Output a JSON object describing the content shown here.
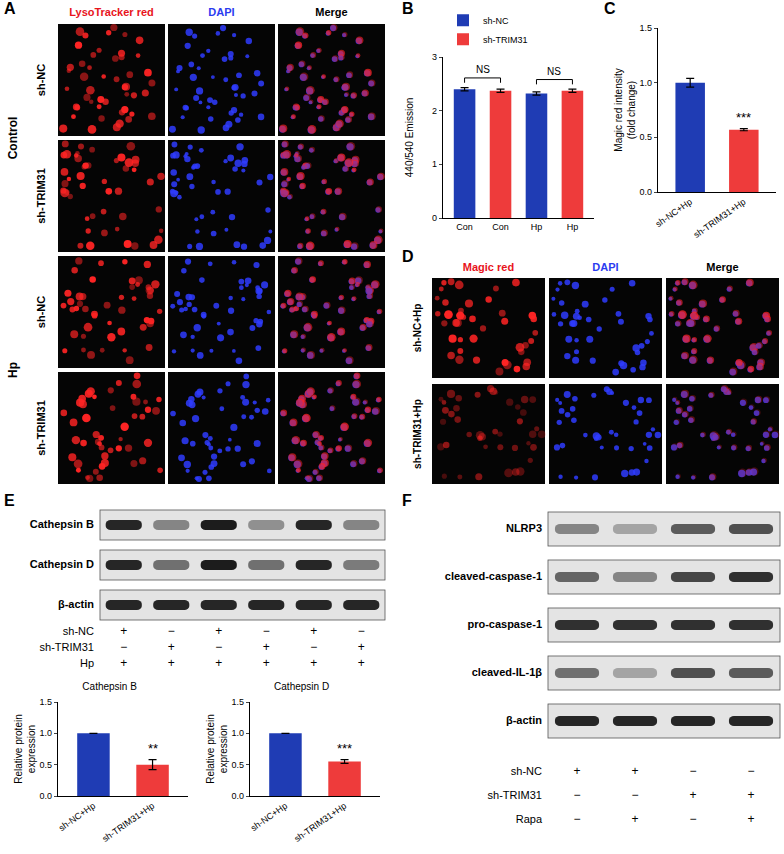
{
  "figure": {
    "panels": {
      "A": {
        "label": "A",
        "columns": [
          {
            "text": "LysoTracker red",
            "color": "#e8141c"
          },
          {
            "text": "DAPI",
            "color": "#2b3cf0"
          },
          {
            "text": "Merge",
            "color": "#000000"
          }
        ],
        "groups": [
          {
            "label": "Control",
            "rows": [
              "sh-NC",
              "sh-TRIM31"
            ]
          },
          {
            "label": "Hp",
            "rows": [
              "sh-NC",
              "sh-TRIM31"
            ]
          }
        ]
      },
      "B": {
        "label": "B"
      },
      "C": {
        "label": "C"
      },
      "D": {
        "label": "D",
        "columns": [
          {
            "text": "Magic red",
            "color": "#e8141c"
          },
          {
            "text": "DAPI",
            "color": "#2b3cf0"
          },
          {
            "text": "Merge",
            "color": "#000000"
          }
        ],
        "rows": [
          "sh-NC+Hp",
          "sh-TRIM31+Hp"
        ]
      },
      "E": {
        "label": "E",
        "blots": [
          {
            "name": "Cathepsin B",
            "bands": [
              0.9,
              0.45,
              0.95,
              0.4,
              0.9,
              0.45
            ]
          },
          {
            "name": "Cathepsin D",
            "bands": [
              0.9,
              0.55,
              0.95,
              0.55,
              0.9,
              0.5
            ]
          },
          {
            "name": "β-actin",
            "bands": [
              0.9,
              0.9,
              0.9,
              0.9,
              0.9,
              0.9
            ]
          }
        ],
        "conditions": [
          {
            "name": "sh-NC",
            "values": [
              "+",
              "−",
              "+",
              "−",
              "+",
              "−"
            ]
          },
          {
            "name": "sh-TRIM31",
            "values": [
              "−",
              "+",
              "−",
              "+",
              "−",
              "+"
            ]
          },
          {
            "name": "Hp",
            "values": [
              "+",
              "+",
              "+",
              "+",
              "+",
              "+"
            ]
          }
        ]
      },
      "F": {
        "label": "F",
        "blots": [
          {
            "name": "NLRP3",
            "bands": [
              0.45,
              0.3,
              0.65,
              0.7
            ]
          },
          {
            "name": "cleaved-caspase-1",
            "bands": [
              0.6,
              0.45,
              0.75,
              0.85
            ]
          },
          {
            "name": "pro-caspase-1",
            "bands": [
              0.85,
              0.85,
              0.85,
              0.85
            ]
          },
          {
            "name": "cleaved-IL-1β",
            "bands": [
              0.55,
              0.3,
              0.7,
              0.65
            ]
          },
          {
            "name": "β-actin",
            "bands": [
              0.9,
              0.9,
              0.9,
              0.9
            ]
          }
        ],
        "conditions": [
          {
            "name": "sh-NC",
            "values": [
              "+",
              "+",
              "−",
              "−"
            ]
          },
          {
            "name": "sh-TRIM31",
            "values": [
              "−",
              "−",
              "+",
              "+"
            ]
          },
          {
            "name": "Rapa",
            "values": [
              "−",
              "+",
              "−",
              "+"
            ]
          }
        ]
      }
    }
  },
  "chart_data": [
    {
      "type": "bar",
      "categories": [
        "Con",
        "Con",
        "Hp",
        "Hp"
      ],
      "series": [
        {
          "name": "sh-NC",
          "color": "#1f3cb4",
          "values": [
            2.4,
            null,
            2.32,
            null
          ],
          "errors": [
            0.03,
            null,
            0.03,
            null
          ]
        },
        {
          "name": "sh-TRIM31",
          "color": "#ee3b3b",
          "values": [
            null,
            2.37,
            null,
            2.37
          ],
          "errors": [
            null,
            0.03,
            null,
            0.03
          ]
        }
      ],
      "y_label": "440/540 Emission",
      "ylim": [
        0,
        3
      ],
      "yticks": [
        0,
        1,
        2,
        3
      ],
      "grid": false,
      "legend": "upper left",
      "annotations": [
        {
          "text": "NS",
          "between": [
            0,
            1
          ]
        },
        {
          "text": "NS",
          "between": [
            2,
            3
          ]
        }
      ]
    },
    {
      "type": "bar",
      "categories": [
        "sh-NC+Hp",
        "sh-TRIM31+Hp"
      ],
      "values": [
        1.0,
        0.57
      ],
      "errors": [
        0.04,
        0.01
      ],
      "colors": [
        "#1f3cb4",
        "#ee3b3b"
      ],
      "y_label": "Magic red intensity\n(fold change)",
      "ylim": [
        0,
        1.5
      ],
      "yticks": [
        {
          "value": 0,
          "label": "0.0"
        },
        {
          "value": 0.5,
          "label": "0.5"
        },
        {
          "value": 1,
          "label": "1.0"
        },
        {
          "value": 1.5,
          "label": "1.5"
        }
      ],
      "grid": false,
      "annotations": [
        {
          "text": "***",
          "category": 1
        }
      ]
    },
    {
      "type": "bar",
      "title": "Cathepsin B",
      "categories": [
        "sh-NC+Hp",
        "sh-TRIM31+Hp"
      ],
      "values": [
        1.0,
        0.5
      ],
      "errors": [
        0,
        0.08
      ],
      "colors": [
        "#1f3cb4",
        "#ee3b3b"
      ],
      "y_label": "Relative protein\nexpression",
      "ylim": [
        0,
        1.5
      ],
      "yticks": [
        {
          "value": 0,
          "label": "0.0"
        },
        {
          "value": 0.5,
          "label": "0.5"
        },
        {
          "value": 1,
          "label": "1.0"
        },
        {
          "value": 1.5,
          "label": "1.5"
        }
      ],
      "grid": false,
      "annotations": [
        {
          "text": "**",
          "category": 1
        }
      ]
    },
    {
      "type": "bar",
      "title": "Cathepsin D",
      "categories": [
        "sh-NC+Hp",
        "sh-TRIM31+Hp"
      ],
      "values": [
        1.0,
        0.55
      ],
      "errors": [
        0,
        0.03
      ],
      "colors": [
        "#1f3cb4",
        "#ee3b3b"
      ],
      "y_label": "Relative protein\nexpression",
      "ylim": [
        0,
        1.5
      ],
      "yticks": [
        {
          "value": 0,
          "label": "0.0"
        },
        {
          "value": 0.5,
          "label": "0.5"
        },
        {
          "value": 1,
          "label": "1.0"
        },
        {
          "value": 1.5,
          "label": "1.5"
        }
      ],
      "grid": false,
      "annotations": [
        {
          "text": "***",
          "category": 1
        }
      ]
    }
  ]
}
